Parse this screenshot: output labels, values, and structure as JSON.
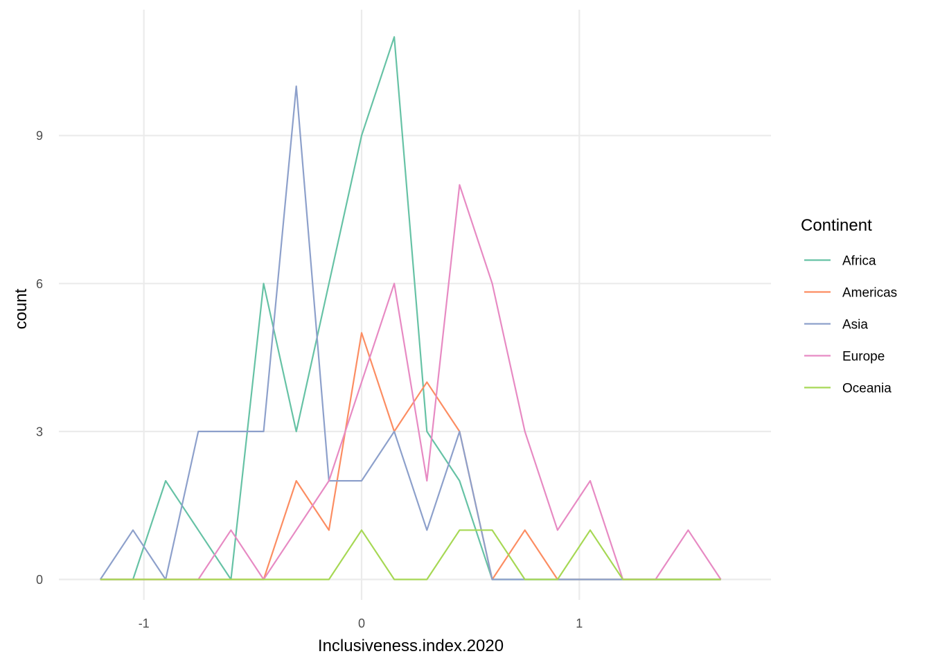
{
  "chart_data": {
    "type": "line",
    "title": "",
    "xlabel": "Inclusiveness.index.2020",
    "ylabel": "count",
    "xlim": [
      -1.3,
      1.75
    ],
    "ylim": [
      -0.5,
      11.5
    ],
    "x_ticks": [
      -1,
      0,
      1
    ],
    "x_tick_labels": [
      "-1",
      "0",
      "1"
    ],
    "y_ticks": [
      0,
      3,
      6,
      9
    ],
    "y_tick_labels": [
      "0",
      "3",
      "6",
      "9"
    ],
    "grid": true,
    "legend": {
      "title": "Continent",
      "placement": "right"
    },
    "x": [
      -1.2,
      -1.05,
      -0.9,
      -0.75,
      -0.6,
      -0.45,
      -0.3,
      -0.15,
      0.0,
      0.15,
      0.3,
      0.45,
      0.6,
      0.75,
      0.9,
      1.05,
      1.2,
      1.35,
      1.5,
      1.65
    ],
    "series": [
      {
        "name": "Africa",
        "color": "#66c2a5",
        "values": [
          0,
          0,
          2,
          1,
          0,
          6,
          3,
          6,
          9,
          11,
          3,
          2,
          0,
          0,
          0,
          0,
          0,
          0,
          0,
          0
        ]
      },
      {
        "name": "Americas",
        "color": "#fc8d62",
        "values": [
          0,
          0,
          0,
          0,
          0,
          0,
          2,
          1,
          5,
          3,
          4,
          3,
          0,
          1,
          0,
          0,
          0,
          0,
          0,
          0
        ]
      },
      {
        "name": "Asia",
        "color": "#8da0cb",
        "values": [
          0,
          1,
          0,
          3,
          3,
          3,
          10,
          2,
          2,
          3,
          1,
          3,
          0,
          0,
          0,
          0,
          0,
          0,
          0,
          0
        ]
      },
      {
        "name": "Europe",
        "color": "#e78ac3",
        "values": [
          0,
          0,
          0,
          0,
          1,
          0,
          1,
          2,
          4,
          6,
          2,
          8,
          6,
          3,
          1,
          2,
          0,
          0,
          1,
          0
        ]
      },
      {
        "name": "Oceania",
        "color": "#a6d854",
        "values": [
          0,
          0,
          0,
          0,
          0,
          0,
          0,
          0,
          1,
          0,
          0,
          1,
          1,
          0,
          0,
          1,
          0,
          0,
          0,
          0
        ]
      }
    ]
  }
}
